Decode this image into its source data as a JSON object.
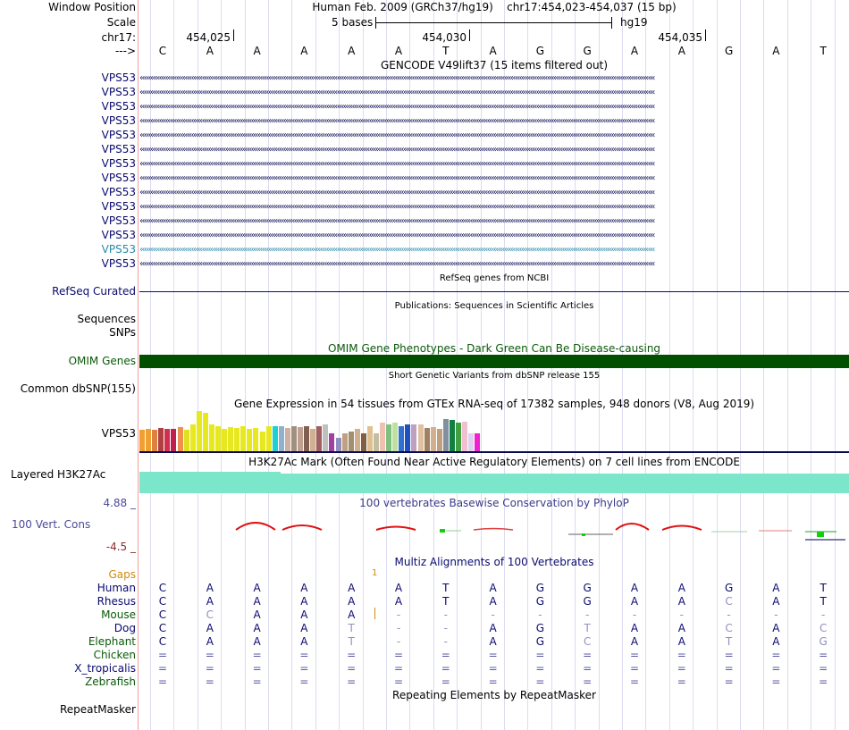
{
  "header": {
    "window_position_label": "Window Position",
    "scale_label": "Scale",
    "chrom_label": "chr17:",
    "strand_label": "--->",
    "assembly": "Human Feb. 2009 (GRCh37/hg19)",
    "position": "chr17:454,023-454,037 (15 bp)",
    "scale_text": "5 bases",
    "db": "hg19",
    "ticks": [
      "454,025",
      "454,030",
      "454,035"
    ],
    "bases": [
      "C",
      "A",
      "A",
      "A",
      "A",
      "A",
      "T",
      "A",
      "G",
      "G",
      "A",
      "A",
      "G",
      "A",
      "T"
    ]
  },
  "gencode": {
    "title": "GENCODE V49lift37 (15 items filtered out)",
    "items": [
      "VPS53",
      "VPS53",
      "VPS53",
      "VPS53",
      "VPS53",
      "VPS53",
      "VPS53",
      "VPS53",
      "VPS53",
      "VPS53",
      "VPS53",
      "VPS53",
      "VPS53",
      "VPS53"
    ],
    "highlighted_index": 12
  },
  "refseq": {
    "title": "RefSeq genes from NCBI",
    "label": "RefSeq Curated"
  },
  "publications": {
    "title": "Publications: Sequences in Scientific Articles",
    "label_seq": "Sequences",
    "label_snps": "SNPs"
  },
  "omim": {
    "title": "OMIM Gene Phenotypes - Dark Green Can Be Disease-causing",
    "label": "OMIM Genes"
  },
  "dbsnp": {
    "title": "Short Genetic Variants from dbSNP release 155",
    "label": "Common dbSNP(155)"
  },
  "gtex": {
    "title": "Gene Expression in 54 tissues from GTEx RNA-seq of 17382 samples, 948 donors (V8, Aug 2019)",
    "label": "VPS53",
    "values": [
      24,
      25,
      24,
      26,
      25,
      25,
      27,
      24,
      30,
      45,
      43,
      30,
      28,
      25,
      27,
      26,
      28,
      25,
      26,
      22,
      28,
      28,
      28,
      26,
      28,
      27,
      28,
      25,
      28,
      30,
      20,
      15,
      20,
      22,
      25,
      20,
      28,
      20,
      32,
      30,
      32,
      28,
      30,
      30,
      30,
      26,
      27,
      25,
      36,
      35,
      32,
      33,
      20,
      20
    ],
    "colors": [
      "#f0a030",
      "#f0a030",
      "#e08040",
      "#b04040",
      "#d03050",
      "#c02050",
      "#f09050",
      "#e0e020",
      "#e8e820",
      "#e8e820",
      "#e8e820",
      "#e8e820",
      "#e8e820",
      "#e8e820",
      "#e8e820",
      "#e8e820",
      "#e8e820",
      "#e8e820",
      "#e8e820",
      "#e8e820",
      "#e8e820",
      "#20d0d0",
      "#90b0d0",
      "#d0b0a0",
      "#a09080",
      "#c0a090",
      "#806050",
      "#d0b090",
      "#a06060",
      "#c0c0c0",
      "#a040a0",
      "#9090c0",
      "#c0a080",
      "#a09070",
      "#d0b090",
      "#806040",
      "#e0c090",
      "#c0c0a0",
      "#f0c0b0",
      "#80c080",
      "#c0e0a0",
      "#3070d0",
      "#2050c0",
      "#c0a0c0",
      "#e0c0a0",
      "#a08060",
      "#d0b090",
      "#c0a080",
      "#8090a0",
      "#108040",
      "#40a040",
      "#f0c0d0",
      "#e0d0f0",
      "#f020d0"
    ]
  },
  "h3k27ac": {
    "title": "H3K27Ac Mark (Often Found Near Active Regulatory Elements) on 7 cell lines from ENCODE",
    "label": "Layered H3K27Ac"
  },
  "phylop": {
    "title": "100 vertebrates Basewise Conservation by PhyloP",
    "label": "100 Vert. Cons",
    "max": "4.88 _",
    "min": "-4.5 _"
  },
  "multiz": {
    "title": "Multiz Alignments of 100 Vertebrates",
    "gaps_label": "Gaps",
    "gap_mark": "1",
    "species": [
      {
        "name": "Human",
        "color": "#0a0a70",
        "bases": [
          "C",
          "A",
          "A",
          "A",
          "A",
          "A",
          "T",
          "A",
          "G",
          "G",
          "A",
          "A",
          "G",
          "A",
          "T"
        ]
      },
      {
        "name": "Rhesus",
        "color": "#0a0a70",
        "bases": [
          "C",
          "A",
          "A",
          "A",
          "A",
          "A",
          "T",
          "A",
          "G",
          "G",
          "A",
          "A",
          "C",
          "A",
          "T"
        ]
      },
      {
        "name": "Mouse",
        "color": "#0a5a0a",
        "bases": [
          "C",
          "C",
          "A",
          "A",
          "A",
          "-",
          "-",
          "-",
          "-",
          "-",
          "-",
          "-",
          "-",
          "-",
          "-"
        ]
      },
      {
        "name": "Dog",
        "color": "#0a0a70",
        "bases": [
          "C",
          "A",
          "A",
          "A",
          "T",
          "-",
          "-",
          "A",
          "G",
          "T",
          "A",
          "A",
          "C",
          "A",
          "C"
        ]
      },
      {
        "name": "Elephant",
        "color": "#0a5a0a",
        "bases": [
          "C",
          "A",
          "A",
          "A",
          "T",
          "-",
          "-",
          "A",
          "G",
          "C",
          "A",
          "A",
          "T",
          "A",
          "G"
        ]
      },
      {
        "name": "Chicken",
        "color": "#0a5a0a",
        "bases": [
          "=",
          "=",
          "=",
          "=",
          "=",
          "=",
          "=",
          "=",
          "=",
          "=",
          "=",
          "=",
          "=",
          "=",
          "="
        ]
      },
      {
        "name": "X_tropicalis",
        "color": "#0a0a70",
        "bases": [
          "=",
          "=",
          "=",
          "=",
          "=",
          "=",
          "=",
          "=",
          "=",
          "=",
          "=",
          "=",
          "=",
          "=",
          "="
        ]
      },
      {
        "name": "Zebrafish",
        "color": "#0a5a0a",
        "bases": [
          "=",
          "=",
          "=",
          "=",
          "=",
          "=",
          "=",
          "=",
          "=",
          "=",
          "=",
          "=",
          "=",
          "=",
          "="
        ]
      }
    ]
  },
  "repeatmasker": {
    "title": "Repeating Elements by RepeatMasker",
    "label": "RepeatMasker"
  }
}
